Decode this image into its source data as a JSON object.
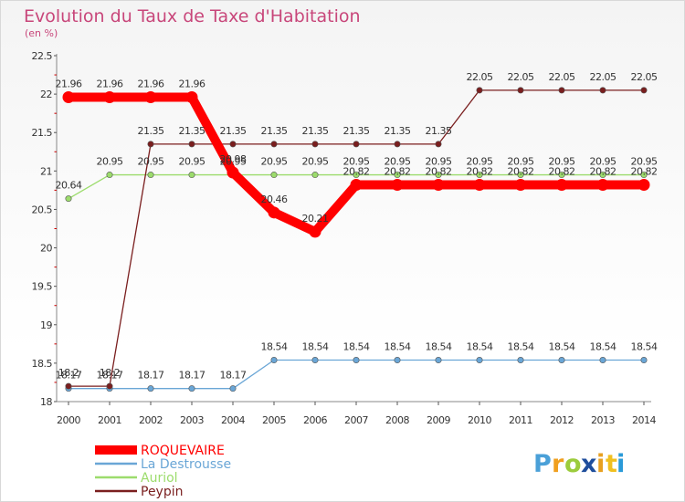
{
  "chart_data": {
    "type": "line",
    "title": "Evolution du Taux de Taxe d'Habitation",
    "subtitle": "(en %)",
    "xlabel": "",
    "ylabel": "",
    "ylim": [
      18,
      22.5
    ],
    "yticks": [
      "18",
      "18.5",
      "19",
      "19.5",
      "20",
      "20.5",
      "21",
      "21.5",
      "22",
      "22.5"
    ],
    "categories": [
      "2000",
      "2001",
      "2002",
      "2003",
      "2004",
      "2005",
      "2006",
      "2007",
      "2008",
      "2009",
      "2010",
      "2011",
      "2012",
      "2013",
      "2014"
    ],
    "series": [
      {
        "name": "ROQUEVAIRE",
        "color": "#ff0000",
        "values": [
          21.96,
          21.96,
          21.96,
          21.96,
          20.98,
          20.46,
          20.21,
          20.82,
          20.82,
          20.82,
          20.82,
          20.82,
          20.82,
          20.82,
          20.82
        ],
        "labels": [
          "21.96",
          "21.96",
          "21.96",
          "21.96",
          "20.98",
          "20.46",
          "20.21",
          "20.82",
          "20.82",
          "20.82",
          "20.82",
          "20.82",
          "20.82",
          "20.82",
          "20.82"
        ]
      },
      {
        "name": "La Destrousse",
        "color": "#6aa6d6",
        "values": [
          18.17,
          18.17,
          18.17,
          18.17,
          18.17,
          18.54,
          18.54,
          18.54,
          18.54,
          18.54,
          18.54,
          18.54,
          18.54,
          18.54,
          18.54
        ],
        "labels": [
          "18.17",
          "18.17",
          "18.17",
          "18.17",
          "18.17",
          "18.54",
          "18.54",
          "18.54",
          "18.54",
          "18.54",
          "18.54",
          "18.54",
          "18.54",
          "18.54",
          "18.54"
        ]
      },
      {
        "name": "Auriol",
        "color": "#9cdc6c",
        "values": [
          20.64,
          20.95,
          20.95,
          20.95,
          20.95,
          20.95,
          20.95,
          20.95,
          20.95,
          20.95,
          20.95,
          20.95,
          20.95,
          20.95,
          20.95
        ],
        "labels": [
          "20.64",
          "20.95",
          "20.95",
          "20.95",
          "20.95",
          "20.95",
          "20.95",
          "20.95",
          "20.95",
          "20.95",
          "20.95",
          "20.95",
          "20.95",
          "20.95",
          "20.95"
        ]
      },
      {
        "name": "Peypin",
        "color": "#7a1e1e",
        "values": [
          18.2,
          18.2,
          21.35,
          21.35,
          21.35,
          21.35,
          21.35,
          21.35,
          21.35,
          21.35,
          22.05,
          22.05,
          22.05,
          22.05,
          22.05
        ],
        "labels": [
          "18.2",
          "18.2",
          "21.35",
          "21.35",
          "21.35",
          "21.35",
          "21.35",
          "21.35",
          "21.35",
          "21.35",
          "22.05",
          "22.05",
          "22.05",
          "22.05",
          "22.05"
        ]
      }
    ]
  },
  "logo": {
    "letters": [
      "P",
      "r",
      "o",
      "x",
      "i",
      "t",
      "i"
    ],
    "colors": [
      "#4aa0d8",
      "#f0a020",
      "#9ccc3c",
      "#1f4e9c",
      "#e8a020",
      "#f0c020",
      "#2a9ad8"
    ]
  }
}
